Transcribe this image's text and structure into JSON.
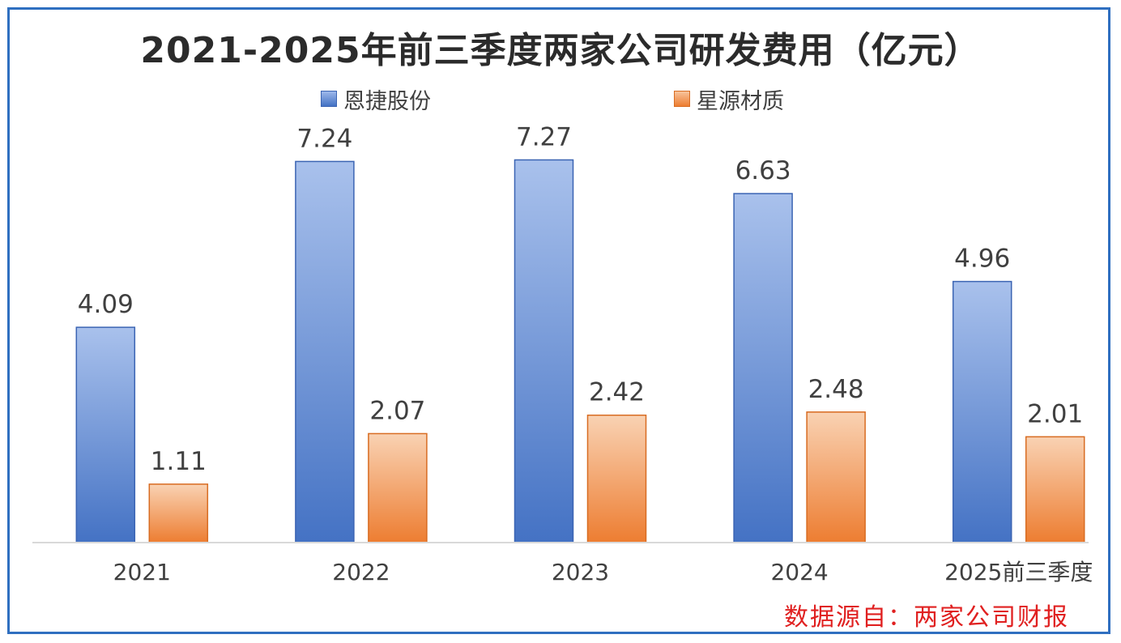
{
  "chart_data": {
    "type": "bar",
    "title": "2021-2025年前三季度两家公司研发费用（亿元）",
    "categories": [
      "2021",
      "2022",
      "2023",
      "2024",
      "2025前三季度"
    ],
    "series": [
      {
        "name": "恩捷股份",
        "values": [
          4.09,
          7.24,
          7.27,
          6.63,
          4.96
        ]
      },
      {
        "name": "星源材质",
        "values": [
          1.11,
          2.07,
          2.42,
          2.48,
          2.01
        ]
      }
    ],
    "value_labels": [
      [
        "4.09",
        "7.24",
        "7.27",
        "6.63",
        "4.96"
      ],
      [
        "1.11",
        "2.07",
        "2.42",
        "2.48",
        "2.01"
      ]
    ],
    "xlabel": "",
    "ylabel": "",
    "ylim": [
      0,
      8
    ],
    "grid": false,
    "legend_position": "top-center"
  },
  "source": "数据源自：两家公司财报",
  "colors": {
    "series_a_top": "#a9c1ec",
    "series_a_bottom": "#4472c4",
    "series_a_border": "#3b64b3",
    "series_b_top": "#f9d2b3",
    "series_b_bottom": "#ed7d31",
    "series_b_border": "#d86c22",
    "frame": "#2f6fc0",
    "source_text": "#e02020"
  }
}
